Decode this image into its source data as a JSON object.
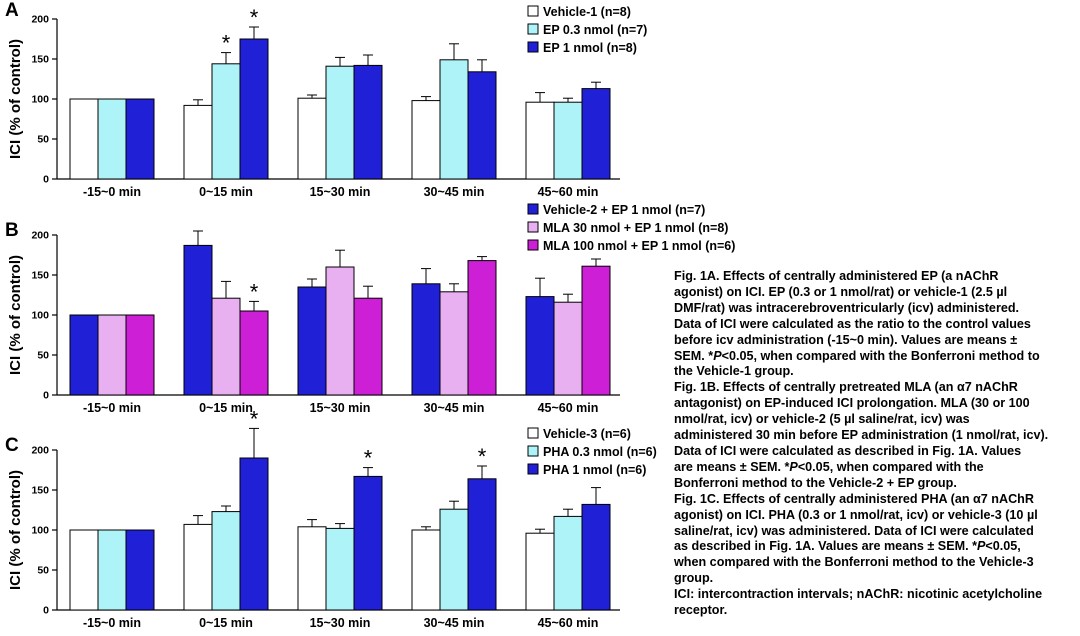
{
  "chart_data": [
    {
      "type": "bar",
      "panel_label": "A",
      "ylabel": "ICI (% of control)",
      "ylim": [
        0,
        200
      ],
      "yticks": [
        0,
        50,
        100,
        150,
        200
      ],
      "grid": false,
      "legend_position": "top-right",
      "categories": [
        "-15~0 min",
        "0~15 min",
        "15~30 min",
        "30~45 min",
        "45~60 min"
      ],
      "series": [
        {
          "name": "Vehicle-1 (n=8)",
          "color": "#ffffff",
          "values": [
            100,
            92,
            101,
            98,
            96
          ],
          "errors": [
            0,
            7,
            4,
            5,
            12
          ]
        },
        {
          "name": "EP 0.3 nmol (n=7)",
          "color": "#aef3f7",
          "values": [
            100,
            144,
            141,
            149,
            96
          ],
          "errors": [
            0,
            14,
            11,
            20,
            5
          ]
        },
        {
          "name": "EP 1 nmol (n=8)",
          "color": "#2020d6",
          "values": [
            100,
            175,
            142,
            134,
            113
          ],
          "errors": [
            0,
            15,
            13,
            15,
            8
          ]
        }
      ],
      "annotations": [
        {
          "category": "0~15 min",
          "series": "EP 0.3 nmol (n=7)",
          "text": "*"
        },
        {
          "category": "0~15 min",
          "series": "EP 1 nmol (n=8)",
          "text": "*"
        }
      ]
    },
    {
      "type": "bar",
      "panel_label": "B",
      "ylabel": "ICI (% of control)",
      "ylim": [
        0,
        200
      ],
      "yticks": [
        0,
        50,
        100,
        150,
        200
      ],
      "grid": false,
      "legend_position": "top-right",
      "categories": [
        "-15~0 min",
        "0~15 min",
        "15~30 min",
        "30~45 min",
        "45~60 min"
      ],
      "series": [
        {
          "name": "Vehicle-2 + EP 1 nmol (n=7)",
          "color": "#2020d6",
          "values": [
            100,
            187,
            135,
            139,
            123
          ],
          "errors": [
            0,
            18,
            10,
            19,
            23
          ]
        },
        {
          "name": "MLA 30 nmol + EP 1 nmol (n=8)",
          "color": "#e8b0f0",
          "values": [
            100,
            121,
            160,
            129,
            116
          ],
          "errors": [
            0,
            21,
            21,
            10,
            10
          ]
        },
        {
          "name": "MLA 100 nmol + EP 1 nmol (n=6)",
          "color": "#cc1fd6",
          "values": [
            100,
            105,
            121,
            168,
            161
          ],
          "errors": [
            0,
            12,
            15,
            5,
            9
          ]
        }
      ],
      "annotations": [
        {
          "category": "0~15 min",
          "series": "MLA 100 nmol + EP 1 nmol (n=6)",
          "text": "*"
        }
      ]
    },
    {
      "type": "bar",
      "panel_label": "C",
      "ylabel": "ICI (% of control)",
      "ylim": [
        0,
        200
      ],
      "yticks": [
        0,
        50,
        100,
        150,
        200
      ],
      "grid": false,
      "legend_position": "top-right",
      "categories": [
        "-15~0 min",
        "0~15 min",
        "15~30 min",
        "30~45 min",
        "45~60 min"
      ],
      "series": [
        {
          "name": "Vehicle-3 (n=6)",
          "color": "#ffffff",
          "values": [
            100,
            107,
            104,
            100,
            96
          ],
          "errors": [
            0,
            11,
            9,
            4,
            5
          ]
        },
        {
          "name": "PHA 0.3 nmol (n=6)",
          "color": "#aef3f7",
          "values": [
            100,
            123,
            102,
            126,
            117
          ],
          "errors": [
            0,
            7,
            6,
            10,
            9
          ]
        },
        {
          "name": "PHA 1 nmol (n=6)",
          "color": "#2020d6",
          "values": [
            100,
            190,
            167,
            164,
            132
          ],
          "errors": [
            0,
            37,
            11,
            16,
            21
          ]
        }
      ],
      "annotations": [
        {
          "category": "0~15 min",
          "series": "PHA 1 nmol (n=6)",
          "text": "*"
        },
        {
          "category": "15~30 min",
          "series": "PHA 1 nmol (n=6)",
          "text": "*"
        },
        {
          "category": "30~45 min",
          "series": "PHA 1 nmol (n=6)",
          "text": "*"
        }
      ]
    }
  ],
  "caption": {
    "fig1a": {
      "line1": "Fig. 1A. Effects of centrally administered EP (a nAChR",
      "line2": "agonist) on ICI.  EP (0.3 or 1 nmol/rat) or vehicle-1 (2.5 µl",
      "line3": "DMF/rat) was intracerebroventricularly (icv) administered.",
      "line4": "Data of ICI were calculated as the ratio to the control values",
      "line5": "before icv administration (-15~0 min).  Values are means ±",
      "line6_pre": "SEM.  *",
      "line6_p": "P",
      "line6_post": "<0.05, when compared with the Bonferroni method to",
      "line7": "the Vehicle-1 group."
    },
    "fig1b": {
      "line1": "Fig. 1B. Effects of centrally pretreated MLA (an α7 nAChR",
      "line2": "antagonist) on EP-induced ICI prolongation.  MLA (30 or 100",
      "line3": "nmol/rat, icv) or vehicle-2 (5 µl saline/rat, icv) was",
      "line4": "administered 30 min before EP administration (1 nmol/rat, icv).",
      "line5": "Data of ICI were calculated as described in Fig. 1A.  Values",
      "line6_pre": "are means ± SEM.  *",
      "line6_p": "P",
      "line6_post": "<0.05, when compared with the",
      "line7": "Bonferroni method to the Vehicle-2 + EP group."
    },
    "fig1c": {
      "line1": "Fig. 1C. Effects of centrally administered PHA (an α7 nAChR",
      "line2": "agonist) on ICI.  PHA (0.3 or 1 nmol/rat, icv) or vehicle-3 (10 µl",
      "line3": "saline/rat, icv) was administered.  Data of ICI were calculated",
      "line4_pre": "as described in Fig. 1A.  Values are means ± SEM.  *",
      "line4_p": "P",
      "line4_post": "<0.05,",
      "line5": "when compared with the Bonferroni method to the Vehicle-3",
      "line6": "group."
    },
    "abbrev": {
      "line1": "ICI: intercontraction intervals; nAChR: nicotinic acetylcholine",
      "line2": "receptor."
    }
  }
}
